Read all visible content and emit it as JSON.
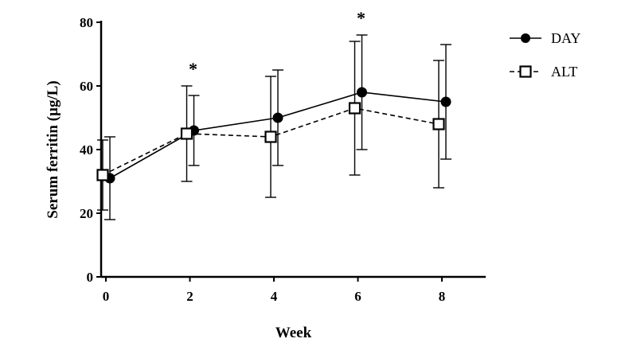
{
  "chart_data": {
    "type": "line",
    "title": "",
    "xlabel": "Week",
    "ylabel": "Serum ferritin (µg/L)",
    "xlim": [
      0,
      9
    ],
    "ylim": [
      0,
      80
    ],
    "x_ticks": [
      "0",
      "2",
      "4",
      "6",
      "8"
    ],
    "y_ticks": [
      "0",
      "20",
      "40",
      "60",
      "80"
    ],
    "grid": false,
    "legend_position": "top-right",
    "series": [
      {
        "name": "DAY",
        "marker": "filled-circle",
        "line_style": "solid",
        "color": "#000000",
        "x": [
          0,
          2,
          4,
          6,
          8
        ],
        "values": [
          31,
          46,
          50,
          58,
          55
        ],
        "error_low": [
          18,
          35,
          35,
          40,
          37
        ],
        "error_high": [
          44,
          57,
          65,
          76,
          73
        ]
      },
      {
        "name": "ALT",
        "marker": "open-square",
        "line_style": "dashed",
        "color": "#000000",
        "x": [
          0,
          2,
          4,
          6,
          8
        ],
        "values": [
          32,
          45,
          44,
          53,
          48
        ],
        "error_low": [
          21,
          30,
          25,
          32,
          28
        ],
        "error_high": [
          43,
          60,
          63,
          74,
          68
        ]
      }
    ],
    "annotations": [
      {
        "text": "*",
        "x": 2
      },
      {
        "text": "*",
        "x": 6
      }
    ]
  }
}
